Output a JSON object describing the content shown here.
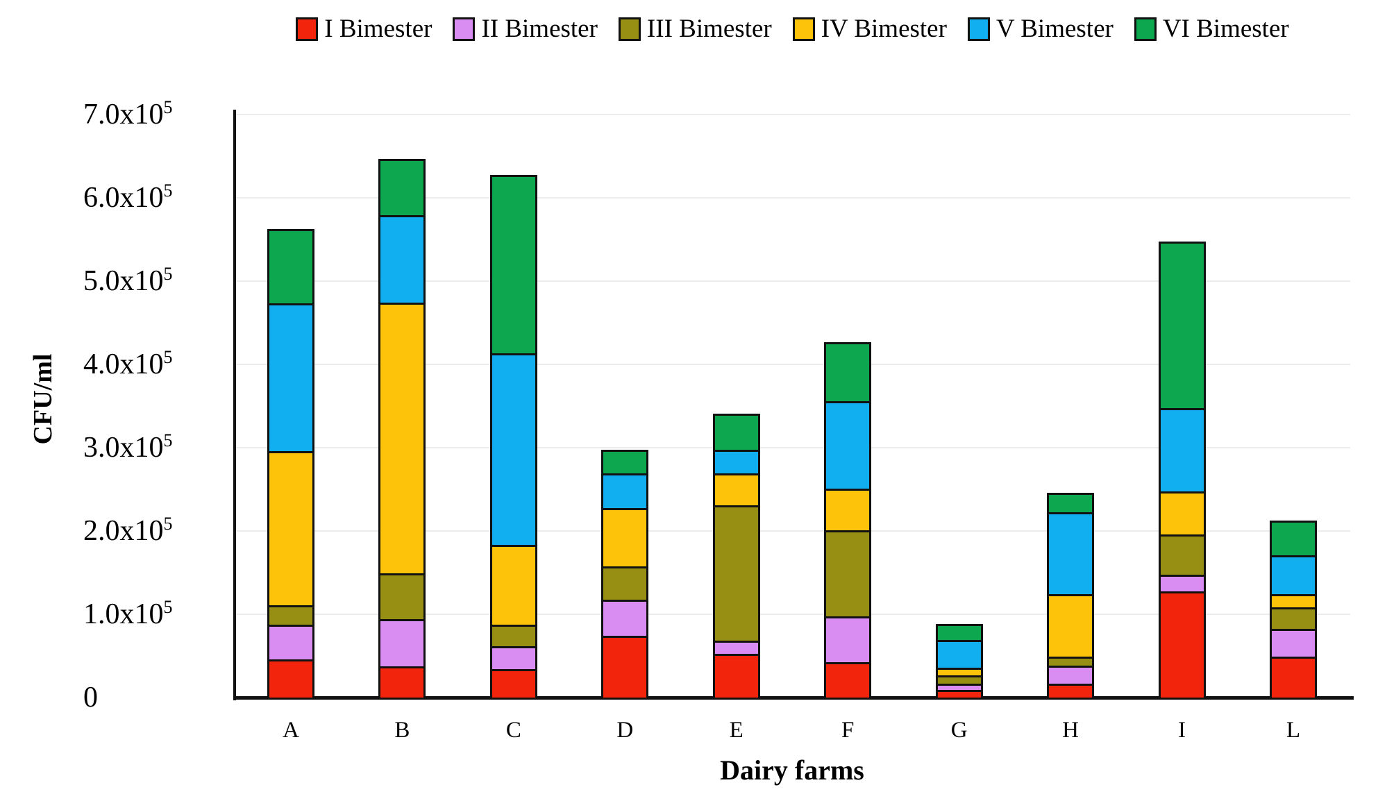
{
  "chart_data": {
    "type": "bar",
    "subtype": "stacked-vertical",
    "title": "",
    "xlabel": "Dairy farms",
    "ylabel": "CFU/ml",
    "categories": [
      "A",
      "B",
      "C",
      "D",
      "E",
      "F",
      "G",
      "H",
      "I",
      "L"
    ],
    "series": [
      {
        "name": "I Bimester",
        "color": "#F2250C",
        "values": [
          43000,
          35000,
          32000,
          72000,
          50000,
          40000,
          7000,
          14000,
          125000,
          47000
        ]
      },
      {
        "name": "II Bimester",
        "color": "#D98CF2",
        "values": [
          42000,
          57000,
          27000,
          43000,
          16000,
          55000,
          7000,
          22000,
          20000,
          33000
        ]
      },
      {
        "name": "III Bimester",
        "color": "#978F14",
        "values": [
          23000,
          55000,
          26000,
          40000,
          162000,
          103000,
          10000,
          11000,
          48000,
          26000
        ]
      },
      {
        "name": "IV Bimester",
        "color": "#FDC30B",
        "values": [
          185000,
          325000,
          96000,
          70000,
          39000,
          50000,
          9000,
          75000,
          52000,
          16000
        ]
      },
      {
        "name": "V Bimester",
        "color": "#12AFF0",
        "values": [
          178000,
          105000,
          230000,
          42000,
          28000,
          105000,
          34000,
          98000,
          100000,
          46000
        ]
      },
      {
        "name": "VI Bimester",
        "color": "#0CA74F",
        "values": [
          89000,
          67000,
          214000,
          28000,
          43000,
          71000,
          19000,
          23000,
          200000,
          42000
        ]
      }
    ],
    "totals": [
      560000,
      644000,
      625000,
      295000,
      338000,
      424000,
      86000,
      243000,
      545000,
      210000
    ],
    "ylim": [
      0,
      706000
    ],
    "yticks": [
      {
        "value": 0,
        "label": "0"
      },
      {
        "value": 100000,
        "label": "1.0x10^5"
      },
      {
        "value": 200000,
        "label": "2.0x10^5"
      },
      {
        "value": 300000,
        "label": "3.0x10^5"
      },
      {
        "value": 400000,
        "label": "4.0x10^5"
      },
      {
        "value": 500000,
        "label": "5.0x10^5"
      },
      {
        "value": 600000,
        "label": "6.0x10^5"
      },
      {
        "value": 700000,
        "label": "7.0x10^5"
      }
    ],
    "grid": true,
    "gridline_color": "#ECECEC",
    "bar_border_color": "#111111",
    "legend_position": "top"
  }
}
